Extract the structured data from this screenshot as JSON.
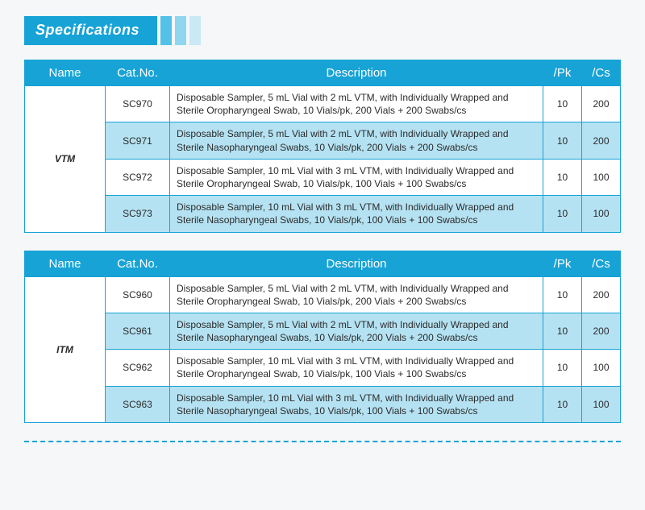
{
  "title": "Specifications",
  "headers": {
    "name": "Name",
    "cat": "Cat.No.",
    "desc": "Description",
    "pk": "/Pk",
    "cs": "/Cs"
  },
  "colors": {
    "primary": "#17a3d6",
    "alt_row": "#b5e2f2",
    "bar1": "#54c2e8",
    "bar2": "#8fd6ee",
    "bar3": "#c9e9f5",
    "background": "#f5f7f8"
  },
  "tables": [
    {
      "group_name": "VTM",
      "rows": [
        {
          "cat": "SC970",
          "desc": "Disposable Sampler, 5 mL Vial with 2 mL VTM, with Individually Wrapped and Sterile Oropharyngeal Swab, 10 Vials/pk, 200 Vials + 200 Swabs/cs",
          "pk": "10",
          "cs": "200"
        },
        {
          "cat": "SC971",
          "desc": "Disposable Sampler, 5 mL Vial with 2 mL VTM, with Individually Wrapped and Sterile Nasopharyngeal Swabs, 10 Vials/pk, 200 Vials + 200 Swabs/cs",
          "pk": "10",
          "cs": "200"
        },
        {
          "cat": "SC972",
          "desc": "Disposable Sampler, 10 mL Vial with 3 mL VTM, with Individually Wrapped and Sterile Oropharyngeal Swab, 10 Vials/pk, 100 Vials + 100 Swabs/cs",
          "pk": "10",
          "cs": "100"
        },
        {
          "cat": "SC973",
          "desc": "Disposable Sampler, 10 mL Vial with 3 mL VTM, with Individually Wrapped and Sterile Nasopharyngeal Swabs, 10 Vials/pk, 100 Vials + 100 Swabs/cs",
          "pk": "10",
          "cs": "100"
        }
      ]
    },
    {
      "group_name": "ITM",
      "rows": [
        {
          "cat": "SC960",
          "desc": "Disposable Sampler, 5 mL Vial with 2 mL VTM, with Individually Wrapped and Sterile Oropharyngeal Swab, 10 Vials/pk, 200 Vials + 200 Swabs/cs",
          "pk": "10",
          "cs": "200"
        },
        {
          "cat": "SC961",
          "desc": "Disposable Sampler, 5 mL Vial with 2 mL VTM, with Individually Wrapped and Sterile Nasopharyngeal Swabs, 10 Vials/pk, 200 Vials + 200 Swabs/cs",
          "pk": "10",
          "cs": "200"
        },
        {
          "cat": "SC962",
          "desc": "Disposable Sampler, 10 mL Vial with 3 mL VTM, with Individually Wrapped and Sterile Oropharyngeal Swab, 10 Vials/pk, 100 Vials + 100 Swabs/cs",
          "pk": "10",
          "cs": "100"
        },
        {
          "cat": "SC963",
          "desc": "Disposable Sampler, 10 mL Vial with 3 mL VTM, with Individually Wrapped and Sterile Nasopharyngeal Swabs, 10 Vials/pk, 100 Vials + 100 Swabs/cs",
          "pk": "10",
          "cs": "100"
        }
      ]
    }
  ]
}
